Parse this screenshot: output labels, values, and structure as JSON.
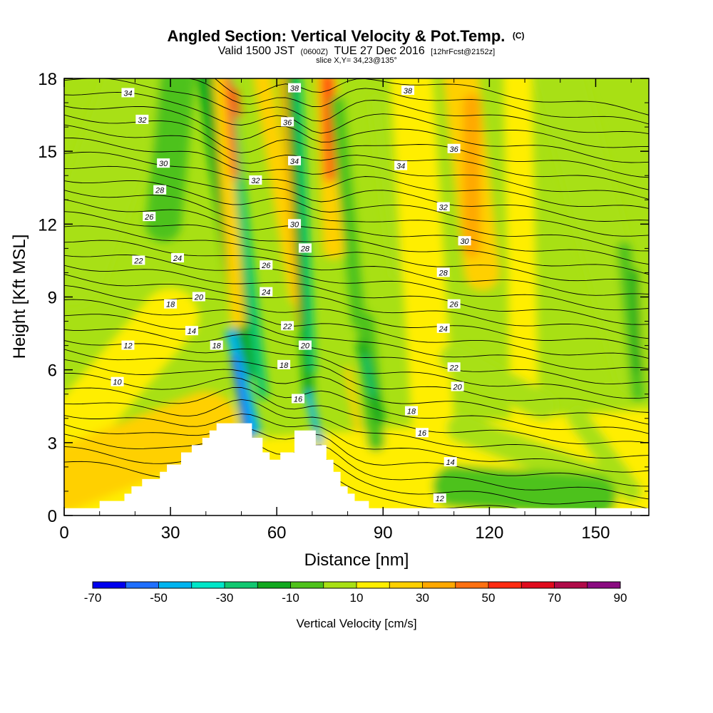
{
  "header": {
    "title": "Angled Section: Vertical Velocity & Pot.Temp.",
    "title_tag": "(C)",
    "subtitle_a": "Valid 1500 JST",
    "subtitle_b": "(0600Z)",
    "subtitle_c": "TUE 27 Dec 2016",
    "subtitle_d": "[12hrFcst@2152z]",
    "slice": "slice X,Y= 34,23@135°"
  },
  "chart_data": {
    "type": "heatmap",
    "xlabel": "Distance [nm]",
    "ylabel": "Height [Kft MSL]",
    "xlim": [
      0,
      165
    ],
    "ylim": [
      0,
      18
    ],
    "x_ticks": [
      0,
      30,
      60,
      90,
      120,
      150
    ],
    "y_ticks": [
      0,
      3,
      6,
      9,
      12,
      15,
      18
    ],
    "colorbar": {
      "title": "Vertical Velocity [cm/s]",
      "labels": [
        "-70",
        "-50",
        "-30",
        "-10",
        "10",
        "30",
        "50",
        "70",
        "90"
      ],
      "levels": [
        -70,
        -60,
        -50,
        -40,
        -30,
        -20,
        -10,
        0,
        10,
        20,
        30,
        40,
        50,
        60,
        70,
        80,
        90
      ],
      "colors": [
        "#0000ee",
        "#1f6fff",
        "#00b4f0",
        "#00e6c8",
        "#10c870",
        "#10a81e",
        "#4ec21a",
        "#a8e014",
        "#ffee00",
        "#ffd000",
        "#ffa800",
        "#ff7010",
        "#ff2a10",
        "#e00a1c",
        "#b00a48",
        "#8a0a80",
        "#5a0a90"
      ]
    },
    "terrain": [
      [
        0,
        0.3
      ],
      [
        10,
        0.3
      ],
      [
        10,
        0.6
      ],
      [
        17,
        0.6
      ],
      [
        17,
        0.9
      ],
      [
        19,
        0.9
      ],
      [
        19,
        1.2
      ],
      [
        22,
        1.2
      ],
      [
        22,
        1.5
      ],
      [
        27,
        1.5
      ],
      [
        27,
        1.8
      ],
      [
        29,
        1.8
      ],
      [
        29,
        2.1
      ],
      [
        33,
        2.1
      ],
      [
        33,
        2.6
      ],
      [
        36,
        2.6
      ],
      [
        36,
        2.9
      ],
      [
        39,
        2.9
      ],
      [
        39,
        3.2
      ],
      [
        41,
        3.2
      ],
      [
        41,
        3.5
      ],
      [
        43,
        3.5
      ],
      [
        43,
        3.8
      ],
      [
        53,
        3.8
      ],
      [
        53,
        3.2
      ],
      [
        56,
        3.2
      ],
      [
        56,
        2.6
      ],
      [
        58,
        2.6
      ],
      [
        58,
        2.3
      ],
      [
        61,
        2.3
      ],
      [
        61,
        2.6
      ],
      [
        65,
        2.6
      ],
      [
        65,
        3.5
      ],
      [
        71,
        3.5
      ],
      [
        71,
        2.9
      ],
      [
        74,
        2.9
      ],
      [
        74,
        2.3
      ],
      [
        76,
        2.3
      ],
      [
        76,
        1.8
      ],
      [
        78,
        1.8
      ],
      [
        78,
        1.2
      ],
      [
        80,
        1.2
      ],
      [
        80,
        0.9
      ],
      [
        82,
        0.9
      ],
      [
        82,
        0.6
      ],
      [
        86,
        0.6
      ],
      [
        86,
        0.3
      ],
      [
        165,
        0.3
      ]
    ],
    "theta_labels": [
      "10",
      "12",
      "14",
      "16",
      "18",
      "20",
      "22",
      "24",
      "26",
      "28",
      "30",
      "32",
      "34",
      "36",
      "38"
    ],
    "theta_label_positions": [
      {
        "v": "10",
        "x": 15,
        "y": 5.5
      },
      {
        "v": "12",
        "x": 18,
        "y": 7.0
      },
      {
        "v": "14",
        "x": 36,
        "y": 7.6
      },
      {
        "v": "18",
        "x": 30,
        "y": 8.7
      },
      {
        "v": "20",
        "x": 38,
        "y": 9.0
      },
      {
        "v": "22",
        "x": 21,
        "y": 10.5
      },
      {
        "v": "24",
        "x": 32,
        "y": 10.6
      },
      {
        "v": "26",
        "x": 24,
        "y": 12.3
      },
      {
        "v": "28",
        "x": 27,
        "y": 13.4
      },
      {
        "v": "30",
        "x": 28,
        "y": 14.5
      },
      {
        "v": "32",
        "x": 22,
        "y": 16.3
      },
      {
        "v": "34",
        "x": 18,
        "y": 17.4
      },
      {
        "v": "18",
        "x": 43,
        "y": 7.0
      },
      {
        "v": "26",
        "x": 57,
        "y": 10.3
      },
      {
        "v": "24",
        "x": 57,
        "y": 9.2
      },
      {
        "v": "32",
        "x": 54,
        "y": 13.8
      },
      {
        "v": "22",
        "x": 63,
        "y": 7.8
      },
      {
        "v": "18",
        "x": 62,
        "y": 6.2
      },
      {
        "v": "16",
        "x": 66,
        "y": 4.8
      },
      {
        "v": "20",
        "x": 68,
        "y": 7.0
      },
      {
        "v": "30",
        "x": 65,
        "y": 12.0
      },
      {
        "v": "28",
        "x": 68,
        "y": 11.0
      },
      {
        "v": "34",
        "x": 65,
        "y": 14.6
      },
      {
        "v": "36",
        "x": 63,
        "y": 16.2
      },
      {
        "v": "38",
        "x": 65,
        "y": 17.6
      },
      {
        "v": "38",
        "x": 97,
        "y": 17.5
      },
      {
        "v": "36",
        "x": 110,
        "y": 15.1
      },
      {
        "v": "34",
        "x": 95,
        "y": 14.4
      },
      {
        "v": "32",
        "x": 107,
        "y": 12.7
      },
      {
        "v": "30",
        "x": 113,
        "y": 11.3
      },
      {
        "v": "28",
        "x": 107,
        "y": 10.0
      },
      {
        "v": "26",
        "x": 110,
        "y": 8.7
      },
      {
        "v": "24",
        "x": 107,
        "y": 7.7
      },
      {
        "v": "22",
        "x": 110,
        "y": 6.1
      },
      {
        "v": "20",
        "x": 111,
        "y": 5.3
      },
      {
        "v": "18",
        "x": 98,
        "y": 4.3
      },
      {
        "v": "16",
        "x": 101,
        "y": 3.4
      },
      {
        "v": "14",
        "x": 109,
        "y": 2.2
      },
      {
        "v": "12",
        "x": 106,
        "y": 0.7
      }
    ]
  }
}
